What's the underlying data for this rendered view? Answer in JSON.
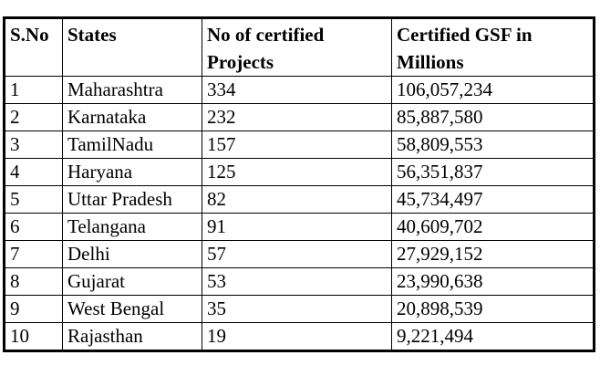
{
  "table": {
    "headers": [
      "S.No",
      "States",
      "No of certified Projects",
      "Certified GSF in Millions"
    ],
    "rows": [
      {
        "sno": "1",
        "state": "Maharashtra",
        "projects": "334",
        "gsf": "106,057,234"
      },
      {
        "sno": "2",
        "state": "Karnataka",
        "projects": "232",
        "gsf": "85,887,580"
      },
      {
        "sno": "3",
        "state": "TamilNadu",
        "projects": "157",
        "gsf": "58,809,553"
      },
      {
        "sno": "4",
        "state": "Haryana",
        "projects": "125",
        "gsf": "56,351,837"
      },
      {
        "sno": "5",
        "state": "Uttar Pradesh",
        "projects": "82",
        "gsf": "45,734,497"
      },
      {
        "sno": "6",
        "state": "Telangana",
        "projects": "91",
        "gsf": "40,609,702"
      },
      {
        "sno": "7",
        "state": "Delhi",
        "projects": "57",
        "gsf": "27,929,152"
      },
      {
        "sno": "8",
        "state": "Gujarat",
        "projects": "53",
        "gsf": "23,990,638"
      },
      {
        "sno": "9",
        "state": "West Bengal",
        "projects": "35",
        "gsf": "20,898,539"
      },
      {
        "sno": "10",
        "state": "Rajasthan",
        "projects": "19",
        "gsf": "9,221,494"
      }
    ]
  }
}
